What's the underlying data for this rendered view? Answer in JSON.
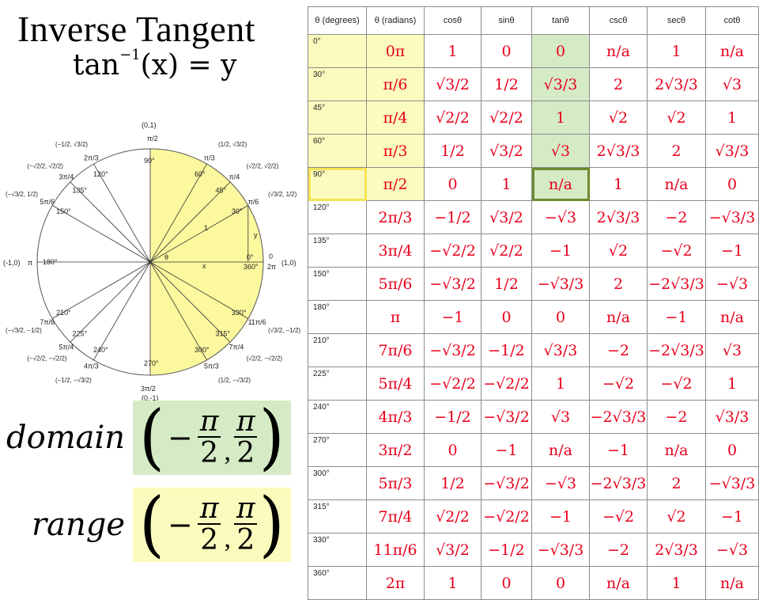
{
  "title": "Inverse Tangent",
  "formula": {
    "base": "tan",
    "sup": "−1",
    "rest": "(x) = y"
  },
  "circle": {
    "top_point": "(0,1)",
    "bottom_point": "(0,-1)",
    "left_point": "(-1,0)",
    "right_point": "(1,0)",
    "pi_half": "π/2",
    "three_pi_half": "3π/2",
    "pi": "π",
    "zero": "0",
    "two_pi": "2π",
    "zero_deg": "0°",
    "three_sixty": "360°",
    "x_label": "x",
    "y_label": "y",
    "one_label": "1",
    "theta": "θ",
    "angles": [
      {
        "deg": "30°",
        "rad": "π/6",
        "coord": "(√3/2, 1/2)"
      },
      {
        "deg": "45°",
        "rad": "π/4",
        "coord": "(√2/2, √2/2)"
      },
      {
        "deg": "60°",
        "rad": "π/3",
        "coord": "(1/2, √3/2)"
      },
      {
        "deg": "90°",
        "rad": "π/2",
        "coord": "(0,1)"
      },
      {
        "deg": "120°",
        "rad": "2π/3",
        "coord": "(−1/2, √3/2)"
      },
      {
        "deg": "135°",
        "rad": "3π/4",
        "coord": "(−√2/2, √2/2)"
      },
      {
        "deg": "150°",
        "rad": "5π/6",
        "coord": "(−√3/2, 1/2)"
      },
      {
        "deg": "180°",
        "rad": "π",
        "coord": "(-1,0)"
      },
      {
        "deg": "210°",
        "rad": "7π/6",
        "coord": "(−√3/2, −1/2)"
      },
      {
        "deg": "225°",
        "rad": "5π/4",
        "coord": "(−√2/2, −√2/2)"
      },
      {
        "deg": "240°",
        "rad": "4π/3",
        "coord": "(−1/2, −√3/2)"
      },
      {
        "deg": "270°",
        "rad": "3π/2",
        "coord": "(0,-1)"
      },
      {
        "deg": "300°",
        "rad": "5π/3",
        "coord": "(1/2, −√3/2)"
      },
      {
        "deg": "315°",
        "rad": "7π/4",
        "coord": "(√2/2, −√2/2)"
      },
      {
        "deg": "330°",
        "rad": "11π/6",
        "coord": "(√3/2, −1/2)"
      }
    ]
  },
  "domain": {
    "word": "domain",
    "num": "π",
    "den": "2",
    "bg": "#d5ebc6"
  },
  "range": {
    "word": "range",
    "num": "π",
    "den": "2",
    "bg": "#fbfbbe"
  },
  "table": {
    "headers": [
      "θ (degrees)",
      "θ (radians)",
      "cosθ",
      "sinθ",
      "tanθ",
      "cscθ",
      "secθ",
      "cotθ"
    ],
    "rows": [
      [
        "0°",
        "0π",
        "1",
        "0",
        "0",
        "n/a",
        "1",
        "n/a"
      ],
      [
        "30°",
        "π/6",
        "√3/2",
        "1/2",
        "√3/3",
        "2",
        "2√3/3",
        "√3"
      ],
      [
        "45°",
        "π/4",
        "√2/2",
        "√2/2",
        "1",
        "√2",
        "√2",
        "1"
      ],
      [
        "60°",
        "π/3",
        "1/2",
        "√3/2",
        "√3",
        "2√3/3",
        "2",
        "√3/3"
      ],
      [
        "90°",
        "π/2",
        "0",
        "1",
        "n/a",
        "1",
        "n/a",
        "0"
      ],
      [
        "120°",
        "2π/3",
        "−1/2",
        "√3/2",
        "−√3",
        "2√3/3",
        "−2",
        "−√3/3"
      ],
      [
        "135°",
        "3π/4",
        "−√2/2",
        "√2/2",
        "−1",
        "√2",
        "−√2",
        "−1"
      ],
      [
        "150°",
        "5π/6",
        "−√3/2",
        "1/2",
        "−√3/3",
        "2",
        "−2√3/3",
        "−√3"
      ],
      [
        "180°",
        "π",
        "−1",
        "0",
        "0",
        "n/a",
        "−1",
        "n/a"
      ],
      [
        "210°",
        "7π/6",
        "−√3/2",
        "−1/2",
        "√3/3",
        "−2",
        "−2√3/3",
        "√3"
      ],
      [
        "225°",
        "5π/4",
        "−√2/2",
        "−√2/2",
        "1",
        "−√2",
        "−√2",
        "1"
      ],
      [
        "240°",
        "4π/3",
        "−1/2",
        "−√3/2",
        "√3",
        "−2√3/3",
        "−2",
        "√3/3"
      ],
      [
        "270°",
        "3π/2",
        "0",
        "−1",
        "n/a",
        "−1",
        "n/a",
        "0"
      ],
      [
        "300°",
        "5π/3",
        "1/2",
        "−√3/2",
        "−√3",
        "−2√3/3",
        "2",
        "−√3/3"
      ],
      [
        "315°",
        "7π/4",
        "√2/2",
        "−√2/2",
        "−1",
        "−√2",
        "√2",
        "−1"
      ],
      [
        "330°",
        "11π/6",
        "√3/2",
        "−1/2",
        "−√3/3",
        "−2",
        "2√3/3",
        "−√3"
      ],
      [
        "360°",
        "2π",
        "1",
        "0",
        "0",
        "n/a",
        "1",
        "n/a"
      ]
    ],
    "colors": {
      "values": "#e8001c",
      "yellow": "#fbfbbe",
      "green": "#d5ebc6",
      "outline": "#6c8a2e"
    }
  }
}
